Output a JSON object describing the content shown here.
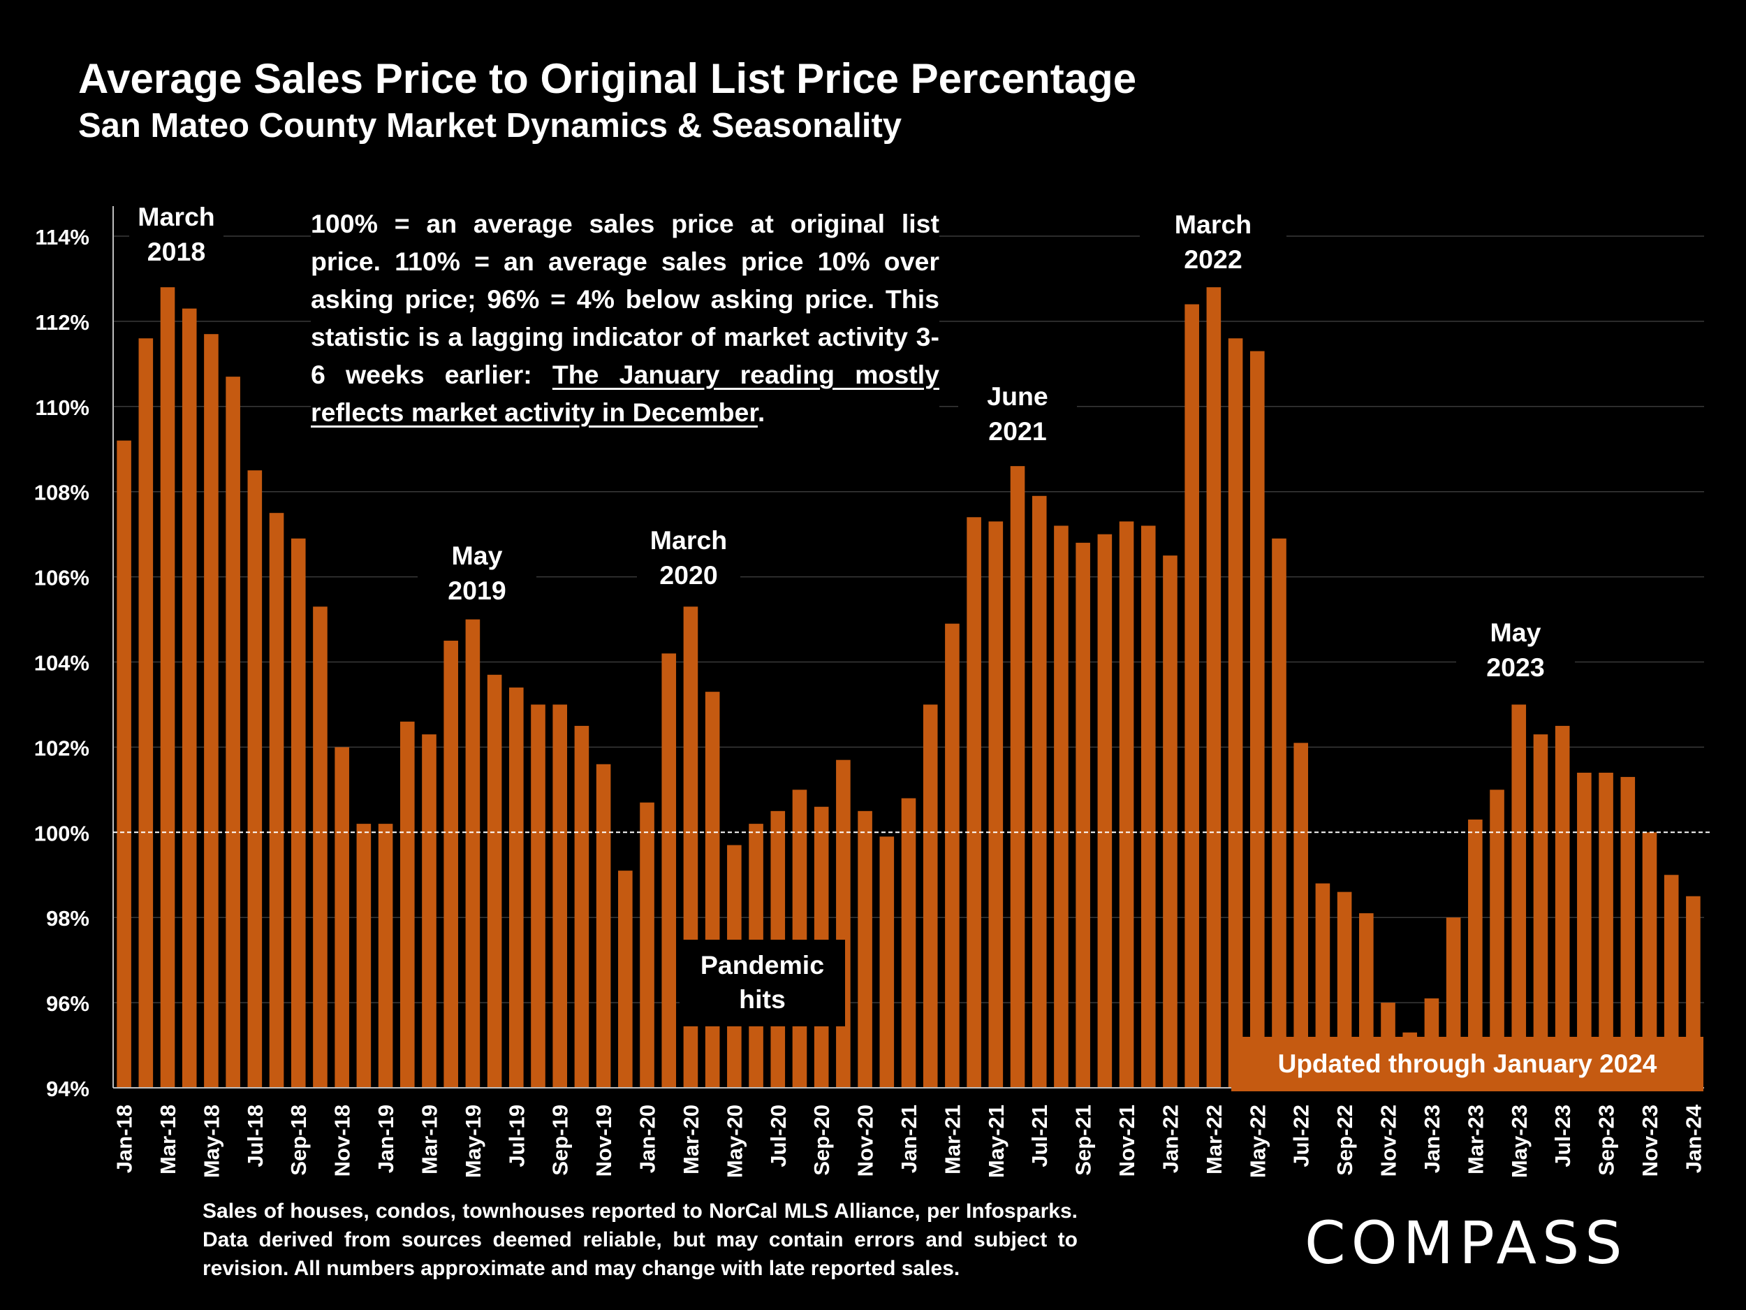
{
  "title": "Average Sales Price to Original List Price Percentage",
  "subtitle": "San Mateo County Market Dynamics & Seasonality",
  "note": {
    "text": "100% = an average sales price at original list price. 110% = an average sales price 10% over asking price; 96% = 4% below asking price. This statistic is a lagging indicator of market activity 3-6 weeks earlier: ",
    "underlined": "The January reading mostly reflects market activity in December",
    "end": "."
  },
  "annotations": {
    "mar2018": [
      "March",
      "2018"
    ],
    "may2019": [
      "May",
      "2019"
    ],
    "mar2020": [
      "March",
      "2020"
    ],
    "jun2021": [
      "June",
      "2021"
    ],
    "mar2022": [
      "March",
      "2022"
    ],
    "may2023": [
      "May",
      "2023"
    ]
  },
  "pandemic": [
    "Pandemic",
    "hits"
  ],
  "updated": "Updated through January 2024",
  "footnote": "Sales of houses, condos, townhouses reported to NorCal MLS Alliance, per Infosparks. Data derived from sources deemed reliable, but may contain errors and subject to revision. All numbers approximate and may change with late reported sales.",
  "logo": "COMPASS",
  "colors": {
    "bar": "#c55a11",
    "background": "#000000",
    "text": "#ffffff"
  },
  "chart_data": {
    "type": "bar",
    "ylim": [
      94,
      115
    ],
    "yticks": [
      94,
      96,
      98,
      100,
      102,
      104,
      106,
      108,
      110,
      112,
      114
    ],
    "ytick_labels": [
      "94%",
      "96%",
      "98%",
      "100%",
      "102%",
      "104%",
      "106%",
      "108%",
      "110%",
      "112%",
      "114%"
    ],
    "reference_line": 100,
    "grid": true,
    "categories": [
      "Jan-18",
      "Feb-18",
      "Mar-18",
      "Apr-18",
      "May-18",
      "Jun-18",
      "Jul-18",
      "Aug-18",
      "Sep-18",
      "Oct-18",
      "Nov-18",
      "Dec-18",
      "Jan-19",
      "Feb-19",
      "Mar-19",
      "Apr-19",
      "May-19",
      "Jun-19",
      "Jul-19",
      "Aug-19",
      "Sep-19",
      "Oct-19",
      "Nov-19",
      "Dec-19",
      "Jan-20",
      "Feb-20",
      "Mar-20",
      "Apr-20",
      "May-20",
      "Jun-20",
      "Jul-20",
      "Aug-20",
      "Sep-20",
      "Oct-20",
      "Nov-20",
      "Dec-20",
      "Jan-21",
      "Feb-21",
      "Mar-21",
      "Apr-21",
      "May-21",
      "Jun-21",
      "Jul-21",
      "Aug-21",
      "Sep-21",
      "Oct-21",
      "Nov-21",
      "Dec-21",
      "Jan-22",
      "Feb-22",
      "Mar-22",
      "Apr-22",
      "May-22",
      "Jun-22",
      "Jul-22",
      "Aug-22",
      "Sep-22",
      "Oct-22",
      "Nov-22",
      "Dec-22",
      "Jan-23",
      "Feb-23",
      "Mar-23",
      "Apr-23",
      "May-23",
      "Jun-23",
      "Jul-23",
      "Aug-23",
      "Sep-23",
      "Oct-23",
      "Nov-23",
      "Dec-23",
      "Jan-24"
    ],
    "values": [
      109.2,
      111.6,
      112.8,
      112.3,
      111.7,
      110.7,
      108.5,
      107.5,
      106.9,
      105.3,
      102.0,
      100.2,
      100.2,
      102.6,
      102.3,
      104.5,
      105.0,
      103.7,
      103.4,
      103.0,
      103.0,
      102.5,
      101.6,
      99.1,
      100.7,
      104.2,
      105.3,
      103.3,
      99.7,
      100.2,
      100.5,
      101.0,
      100.6,
      101.7,
      100.5,
      99.9,
      100.8,
      103.0,
      104.9,
      107.4,
      107.3,
      108.6,
      107.9,
      107.2,
      106.8,
      107.0,
      107.3,
      107.2,
      106.5,
      112.4,
      112.8,
      111.6,
      111.3,
      106.9,
      102.1,
      98.8,
      98.6,
      98.1,
      96.0,
      95.3,
      96.1,
      98.0,
      100.3,
      101.0,
      103.0,
      102.3,
      102.5,
      101.4,
      101.4,
      101.3,
      100.0,
      99.0,
      98.5
    ],
    "x_labels_shown": [
      "Jan-18",
      "Mar-18",
      "May-18",
      "Jul-18",
      "Sep-18",
      "Nov-18",
      "Jan-19",
      "Mar-19",
      "May-19",
      "Jul-19",
      "Sep-19",
      "Nov-19",
      "Jan-20",
      "Mar-20",
      "May-20",
      "Jul-20",
      "Sep-20",
      "Nov-20",
      "Jan-21",
      "Mar-21",
      "May-21",
      "Jul-21",
      "Sep-21",
      "Nov-21",
      "Jan-22",
      "Mar-22",
      "May-22",
      "Jul-22",
      "Sep-22",
      "Nov-22",
      "Jan-23",
      "Mar-23",
      "May-23",
      "Jul-23",
      "Sep-23",
      "Nov-23",
      "Jan-24"
    ]
  }
}
